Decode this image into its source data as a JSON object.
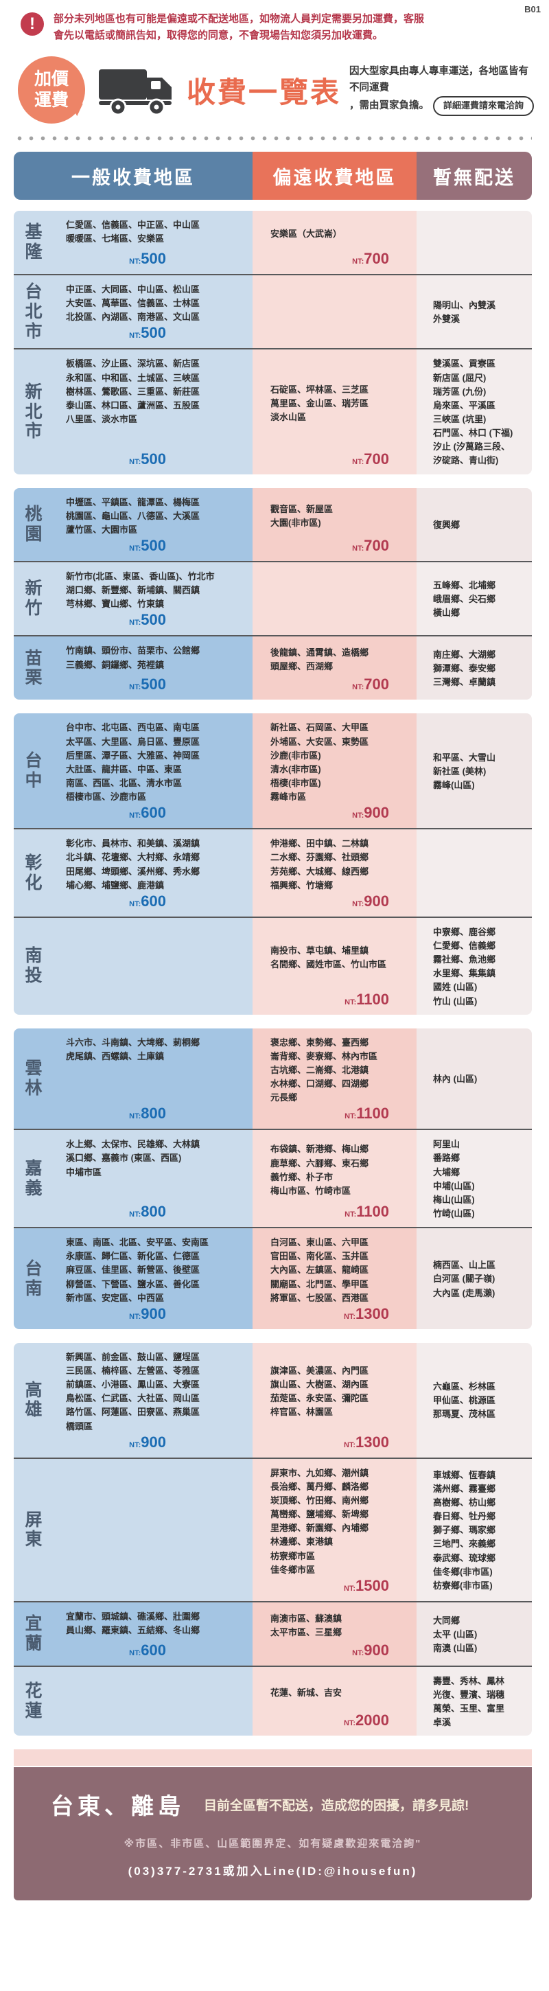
{
  "page_code": "B01",
  "warning": {
    "line1": "部分未列地區也有可能是偏遠或不配送地區，如物流人員判定需要另加運費，客服",
    "line2": "會先以電話或簡訊告知，取得您的同意，不會現場告知您須另加收運費。"
  },
  "header": {
    "badge_line1": "加價",
    "badge_line2": "運費",
    "truck_icon": "truck-icon",
    "title": "收費一覽表",
    "subtitle_line1": "因大型家具由專人專車運送，各地區皆有不同運費",
    "subtitle_line2": "，需由買家負擔。",
    "pill_label": "詳細運費請來電洽詢"
  },
  "colors": {
    "general_header": "#5b82a7",
    "remote_header": "#e8735a",
    "none_header": "#97707a",
    "general_price": "#1b6cb3",
    "remote_price": "#b23a50",
    "accent_orange": "#ed8467",
    "warning_red": "#b5374b",
    "footer_band": "#8d6a72"
  },
  "table": {
    "currency_prefix": "NT:",
    "headers": [
      "一般收費地區",
      "偏遠收費地區",
      "暫無配送"
    ],
    "blocks": [
      {
        "rows": [
          {
            "region": "基隆",
            "tone": "light",
            "general": {
              "lines": [
                "仁愛區、信義區、中正區、中山區",
                "暖暖區、七堵區、安樂區"
              ],
              "price": "500"
            },
            "remote": {
              "lines": [
                "安樂區（大武崙）"
              ],
              "price": "700"
            },
            "none": {
              "lines": []
            }
          },
          {
            "region": "台北市",
            "tone": "light",
            "general": {
              "lines": [
                "中正區、大同區、中山區、松山區",
                "大安區、萬華區、信義區、士林區",
                "北投區、內湖區、南港區、文山區"
              ],
              "price": "500"
            },
            "remote": {
              "lines": [],
              "price": ""
            },
            "none": {
              "lines": [
                "陽明山、內雙溪",
                "外雙溪"
              ]
            }
          },
          {
            "region": "新北市",
            "tone": "light",
            "general": {
              "lines": [
                "板橋區、汐止區、深坑區、新店區",
                "永和區、中和區、土城區、三峽區",
                "樹林區、鶯歌區、三重區、新莊區",
                "泰山區、林口區、蘆洲區、五股區",
                "八里區、淡水市區"
              ],
              "price": "500"
            },
            "remote": {
              "lines": [
                "石碇區、坪林區、三芝區",
                "萬里區、金山區、瑞芳區",
                "淡水山區"
              ],
              "price": "700"
            },
            "none": {
              "lines": [
                "雙溪區、貢寮區",
                "新店區 (屈尺)",
                "瑞芳區 (九份)",
                "烏來區、平溪區",
                "三峽區 (坑里)",
                "石門區、林口 (下福)",
                "汐止 (汐萬路三段、",
                "汐碇路、青山街)"
              ]
            }
          }
        ]
      },
      {
        "rows": [
          {
            "region": "桃園",
            "tone": "dark",
            "general": {
              "lines": [
                "中壢區、平鎮區、龍潭區、楊梅區",
                "桃園區、龜山區、八德區、大溪區",
                "蘆竹區、大園市區"
              ],
              "price": "500"
            },
            "remote": {
              "lines": [
                "觀音區、新屋區",
                "大園(非市區)"
              ],
              "price": "700"
            },
            "none": {
              "lines": [
                "復興鄉"
              ]
            }
          },
          {
            "region": "新竹",
            "tone": "light",
            "general": {
              "lines": [
                "新竹市(北區、東區、香山區)、竹北市",
                "湖口鄉、新豐鄉、新埔鎮、關西鎮",
                "芎林鄉、寶山鄉、竹東鎮"
              ],
              "price": "500"
            },
            "remote": {
              "lines": [],
              "price": ""
            },
            "none": {
              "lines": [
                "五峰鄉、北埔鄉",
                "峨眉鄉、尖石鄉",
                "橫山鄉"
              ]
            }
          },
          {
            "region": "苗栗",
            "tone": "dark",
            "general": {
              "lines": [
                "竹南鎮、頭份市、苗栗市、公館鄉",
                "三義鄉、銅鑼鄉、苑裡鎮"
              ],
              "price": "500"
            },
            "remote": {
              "lines": [
                "後龍鎮、通霄鎮、造橋鄉",
                "頭屋鄉、西湖鄉"
              ],
              "price": "700"
            },
            "none": {
              "lines": [
                "南庄鄉、大湖鄉",
                "獅潭鄉、泰安鄉",
                "三灣鄉、卓蘭鎮"
              ]
            }
          }
        ]
      },
      {
        "rows": [
          {
            "region": "台中",
            "tone": "dark",
            "general": {
              "lines": [
                "台中市、北屯區、西屯區、南屯區",
                "太平區、大里區、烏日區、豐原區",
                "后里區、潭子區、大雅區、神岡區",
                "大肚區、龍井區、中區、東區",
                "南區、西區、北區、清水市區",
                "梧棲市區、沙鹿市區"
              ],
              "price": "600"
            },
            "remote": {
              "lines": [
                "新社區、石岡區、大甲區",
                "外埔區、大安區、東勢區",
                "沙鹿(非市區)",
                "清水(非市區)",
                "梧棲(非市區)",
                "霧峰市區"
              ],
              "price": "900"
            },
            "none": {
              "lines": [
                "和平區、大雪山",
                "新社區 (美林)",
                "霧峰(山區)"
              ]
            }
          },
          {
            "region": "彰化",
            "tone": "light",
            "general": {
              "lines": [
                "彰化市、員林市、和美鎮、溪湖鎮",
                "北斗鎮、花壇鄉、大村鄉、永靖鄉",
                "田尾鄉、埤頭鄉、溪州鄉、秀水鄉",
                "埔心鄉、埔鹽鄉、鹿港鎮"
              ],
              "price": "600"
            },
            "remote": {
              "lines": [
                "伸港鄉、田中鎮、二林鎮",
                "二水鄉、芬園鄉、社頭鄉",
                "芳苑鄉、大城鄉、線西鄉",
                "福興鄉、竹塘鄉"
              ],
              "price": "900"
            },
            "none": {
              "lines": []
            }
          },
          {
            "region": "南投",
            "tone": "light",
            "general": {
              "lines": [],
              "price": ""
            },
            "remote": {
              "lines": [
                "南投市、草屯鎮、埔里鎮",
                "名間鄉、國姓市區、竹山市區"
              ],
              "price": "1100"
            },
            "none": {
              "lines": [
                "中寮鄉、鹿谷鄉",
                "仁愛鄉、信義鄉",
                "霧社鄉、魚池鄉",
                "水里鄉、集集鎮",
                "國姓 (山區)",
                "竹山 (山區)"
              ]
            }
          }
        ]
      },
      {
        "rows": [
          {
            "region": "雲林",
            "tone": "dark",
            "general": {
              "lines": [
                "斗六市、斗南鎮、大埤鄉、莿桐鄉",
                "虎尾鎮、西螺鎮、土庫鎮"
              ],
              "price": "800"
            },
            "remote": {
              "lines": [
                "褒忠鄉、東勢鄉、臺西鄉",
                "崙背鄉、麥寮鄉、林內市區",
                "古坑鄉、二崙鄉、北港鎮",
                "水林鄉、口湖鄉、四湖鄉",
                "元長鄉"
              ],
              "price": "1100"
            },
            "none": {
              "lines": [
                "林內 (山區)"
              ]
            }
          },
          {
            "region": "嘉義",
            "tone": "light",
            "general": {
              "lines": [
                "水上鄉、太保市、民雄鄉、大林鎮",
                "溪口鄉、嘉義市 (東區、西區)",
                "中埔市區"
              ],
              "price": "800"
            },
            "remote": {
              "lines": [
                "布袋鎮、新港鄉、梅山鄉",
                "鹿草鄉、六腳鄉、東石鄉",
                "義竹鄉、朴子市",
                "梅山市區、竹崎市區"
              ],
              "price": "1100"
            },
            "none": {
              "lines": [
                "阿里山",
                "番路鄉",
                "大埔鄉",
                "中埔(山區)",
                "梅山(山區)",
                "竹崎(山區)"
              ]
            }
          },
          {
            "region": "台南",
            "tone": "dark",
            "general": {
              "lines": [
                "東區、南區、北區、安平區、安南區",
                "永康區、歸仁區、新化區、仁德區",
                "麻豆區、佳里區、新營區、後壁區",
                "柳營區、下營區、鹽水區、善化區",
                "新市區、安定區、中西區"
              ],
              "price": "900"
            },
            "remote": {
              "lines": [
                "白河區、東山區、六甲區",
                "官田區、南化區、玉井區",
                "大內區、左鎮區、龍崎區",
                "關廟區、北門區、學甲區",
                "將軍區、七股區、西港區"
              ],
              "price": "1300"
            },
            "none": {
              "lines": [
                "楠西區、山上區",
                "白河區 (關子嶺)",
                "大內區 (走馬瀨)"
              ]
            }
          }
        ]
      },
      {
        "rows": [
          {
            "region": "高雄",
            "tone": "light",
            "general": {
              "lines": [
                "新興區、前金區、鼓山區、鹽埕區",
                "三民區、楠梓區、左營區、苓雅區",
                "前鎮區、小港區、鳳山區、大寮區",
                "鳥松區、仁武區、大社區、岡山區",
                "路竹區、阿蓮區、田寮區、燕巢區",
                "橋頭區"
              ],
              "price": "900"
            },
            "remote": {
              "lines": [
                "旗津區、美濃區、內門區",
                "旗山區、大樹區、湖內區",
                "茄萣區、永安區、彌陀區",
                "梓官區、林園區"
              ],
              "price": "1300"
            },
            "none": {
              "lines": [
                "六龜區、杉林區",
                "甲仙區、桃源區",
                "那瑪夏、茂林區"
              ]
            }
          },
          {
            "region": "屏東",
            "tone": "light",
            "general": {
              "lines": [],
              "price": ""
            },
            "remote": {
              "lines": [
                "屏東市、九如鄉、潮州鎮",
                "長治鄉、萬丹鄉、麟洛鄉",
                "崁頂鄉、竹田鄉、南州鄉",
                "萬巒鄉、鹽埔鄉、新埤鄉",
                "里港鄉、新園鄉、內埔鄉",
                "林邊鄉、東港鎮",
                "枋寮鄉市區",
                "佳冬鄉市區"
              ],
              "price": "1500"
            },
            "none": {
              "lines": [
                "車城鄉、恆春鎮",
                "滿州鄉、霧臺鄉",
                "高樹鄉、枋山鄉",
                "春日鄉、牡丹鄉",
                "獅子鄉、瑪家鄉",
                "三地門、來義鄉",
                "泰武鄉、琉球鄉",
                "佳冬鄉(非市區)",
                "枋寮鄉(非市區)"
              ]
            }
          },
          {
            "region": "宜蘭",
            "tone": "dark",
            "general": {
              "lines": [
                "宜蘭市、頭城鎮、礁溪鄉、壯圍鄉",
                "員山鄉、羅東鎮、五結鄉、冬山鄉"
              ],
              "price": "600"
            },
            "remote": {
              "lines": [
                "南澳市區、蘇澳鎮",
                "太平市區、三星鄉"
              ],
              "price": "900"
            },
            "none": {
              "lines": [
                "大同鄉",
                "太平 (山區)",
                "南澳 (山區)"
              ]
            }
          },
          {
            "region": "花蓮",
            "tone": "light",
            "general": {
              "lines": [],
              "price": ""
            },
            "remote": {
              "lines": [
                "花蓮、新城、吉安"
              ],
              "price": "2000"
            },
            "none": {
              "lines": [
                "壽豐、秀林、鳳林",
                "光復、豐濱、瑞穗",
                "萬榮、玉里、富里",
                "卓溪"
              ]
            }
          }
        ]
      }
    ]
  },
  "footer": {
    "banner_title": "台東、離島",
    "banner_message": "目前全區暫不配送，造成您的困擾，請多見諒!",
    "note": "※市區、非市區、山區範圍界定、如有疑慮歡迎來電洽詢\"",
    "contact": "(03)377-2731或加入Line(ID:@ihousefun)"
  }
}
